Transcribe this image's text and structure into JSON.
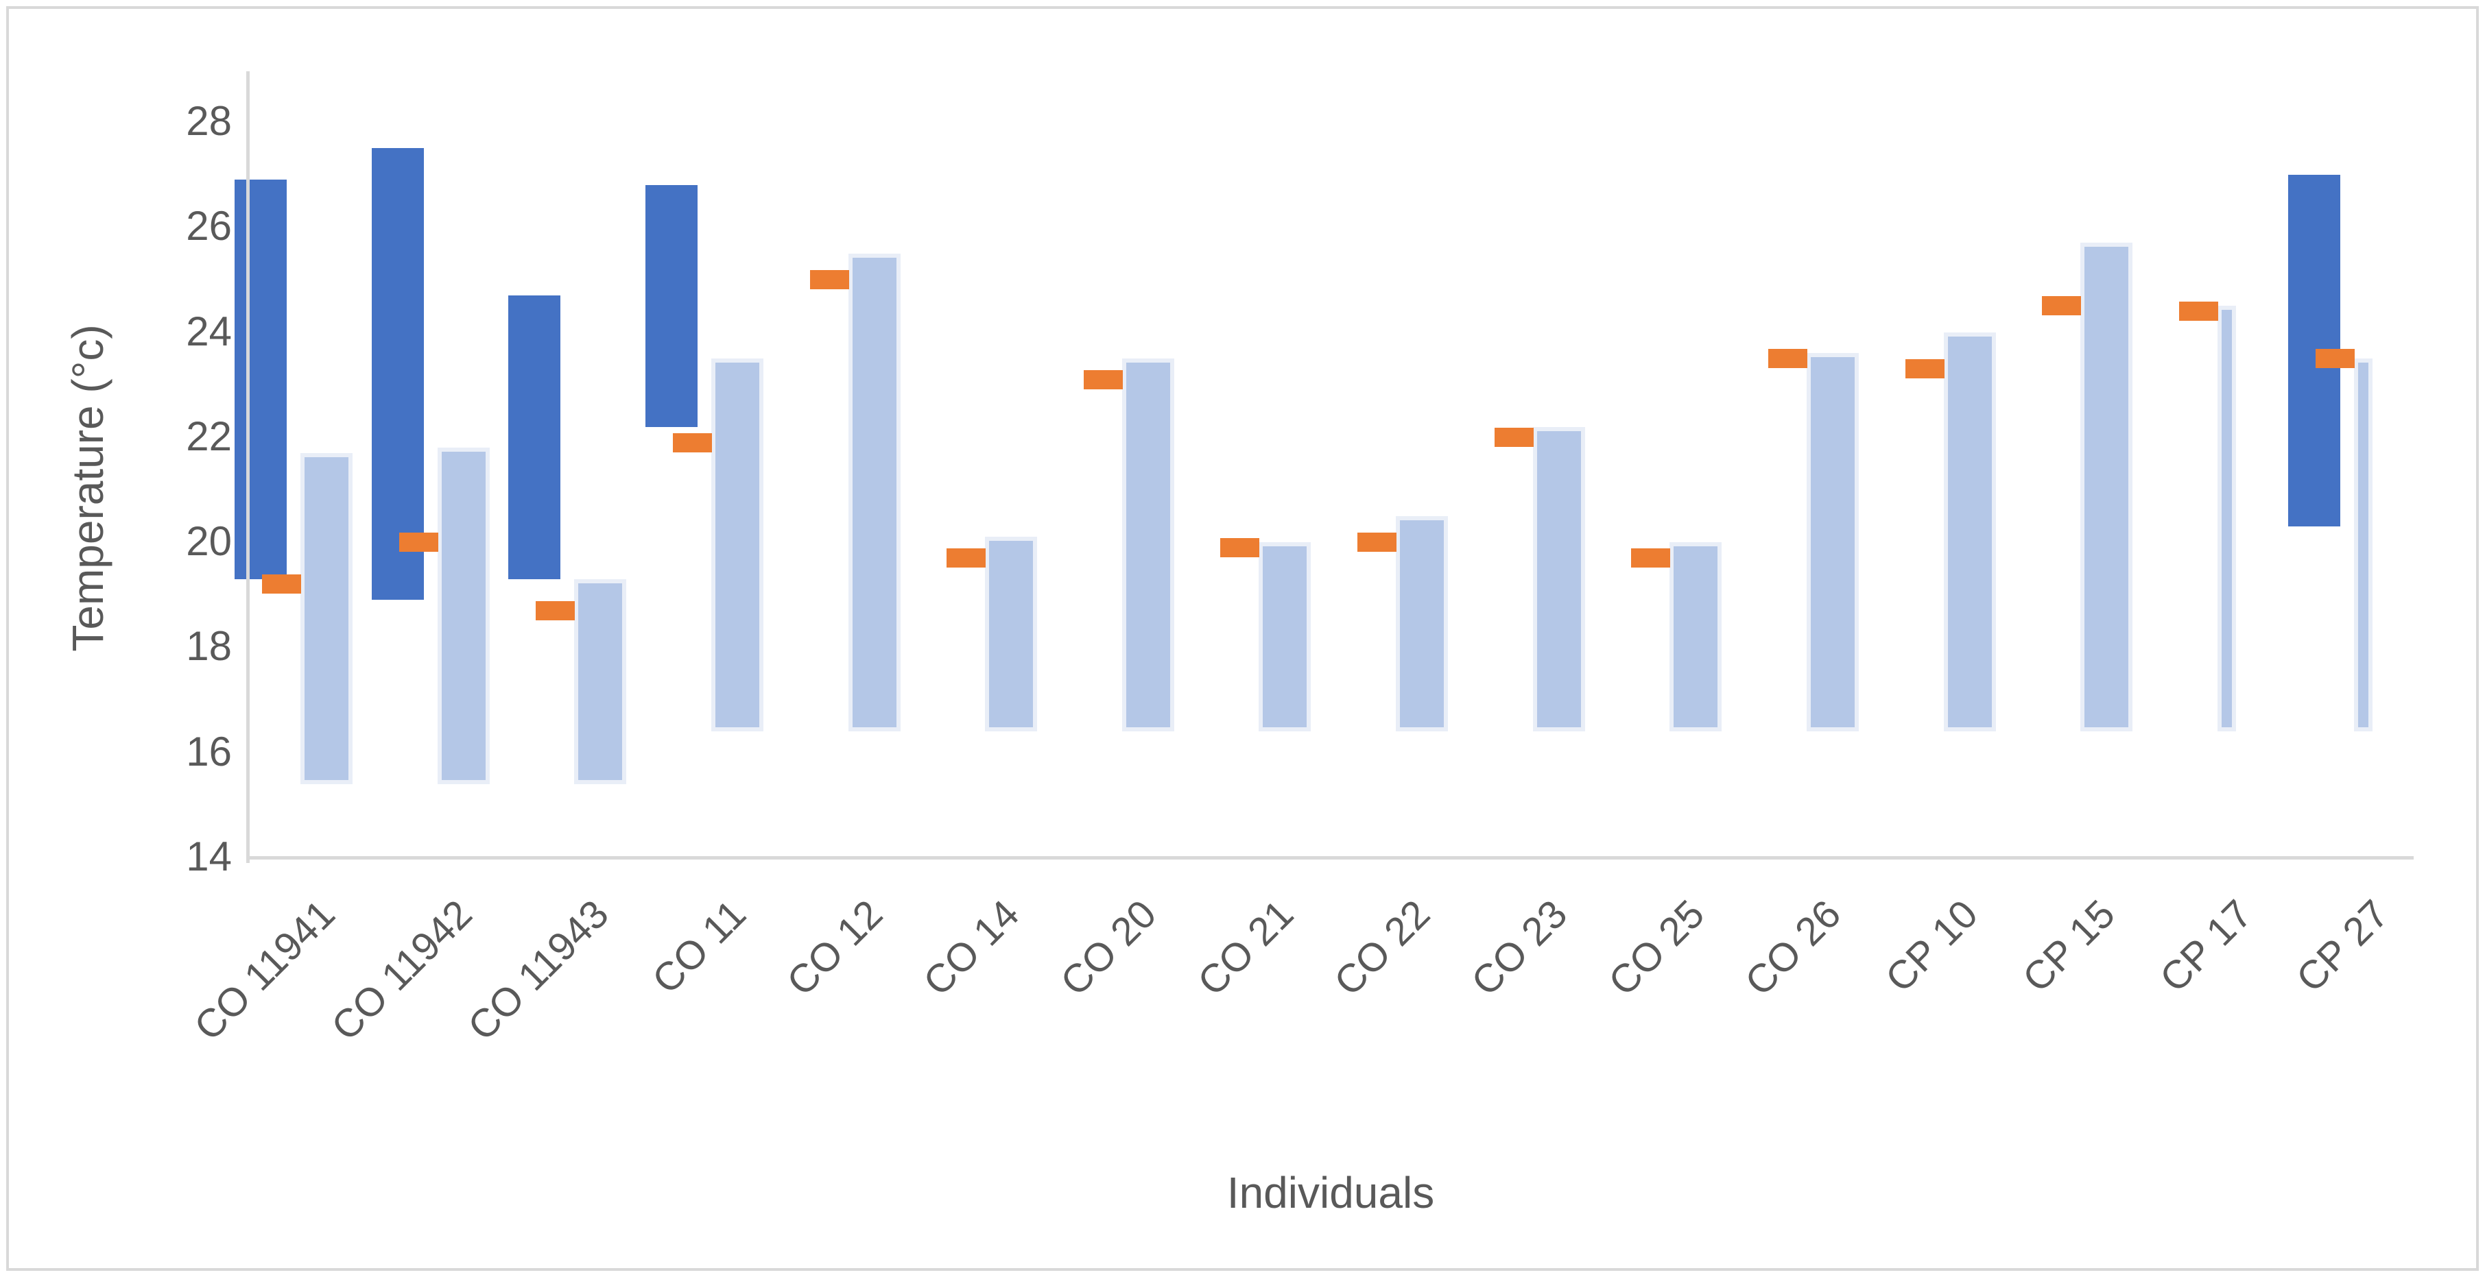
{
  "chart_data": {
    "type": "bar",
    "subtype": "floating-range-columns-with-dash-markers",
    "title": "",
    "xlabel": "Individuals",
    "ylabel": "Temperature (°c)",
    "ylim": [
      14,
      28
    ],
    "yticks": [
      28,
      26,
      24,
      22,
      20,
      18,
      16,
      14
    ],
    "grid": false,
    "legend": "none",
    "axis_color": "#D9D9D9",
    "text_color": "#595959",
    "categories": [
      "CO 11941",
      "CO 11942",
      "CO 11943",
      "CO 11",
      "CO 12",
      "CO 14",
      "CO 20",
      "CO 21",
      "CO 22",
      "CO 23",
      "CO 25",
      "CO 26",
      "CP 10",
      "CP 15",
      "CP 17",
      "CP 27"
    ],
    "series": [
      {
        "name": "range-dark-blue",
        "type": "floating-bar",
        "color": "#4472C4",
        "ranges": [
          [
            19.3,
            26.9
          ],
          [
            18.9,
            27.5
          ],
          [
            19.3,
            24.7
          ],
          [
            22.2,
            26.8
          ],
          null,
          null,
          null,
          null,
          null,
          null,
          null,
          null,
          null,
          null,
          null,
          [
            20.3,
            27.0
          ]
        ]
      },
      {
        "name": "range-light-blue",
        "type": "floating-bar",
        "color": "#B4C7E7",
        "border_color": "#E9EEF7",
        "ranges": [
          [
            15.4,
            21.7
          ],
          [
            15.4,
            21.8
          ],
          [
            15.4,
            19.3
          ],
          [
            16.4,
            23.5
          ],
          [
            16.4,
            25.5
          ],
          [
            16.4,
            20.1
          ],
          [
            16.4,
            23.5
          ],
          [
            16.4,
            20.0
          ],
          [
            16.4,
            20.5
          ],
          [
            16.4,
            22.2
          ],
          [
            16.4,
            20.0
          ],
          [
            16.4,
            23.6
          ],
          [
            16.4,
            24.0
          ],
          [
            16.4,
            25.7
          ],
          [
            16.4,
            24.5
          ],
          [
            16.4,
            23.5
          ]
        ],
        "narrow_categories": [
          "CP 17",
          "CP 27"
        ]
      },
      {
        "name": "marker-orange",
        "type": "dash-marker",
        "color": "#ED7D31",
        "values": [
          19.2,
          20.0,
          18.7,
          21.9,
          25.0,
          19.7,
          23.1,
          19.9,
          20.0,
          22.0,
          19.7,
          23.5,
          23.3,
          24.5,
          24.4,
          23.5
        ]
      }
    ]
  }
}
